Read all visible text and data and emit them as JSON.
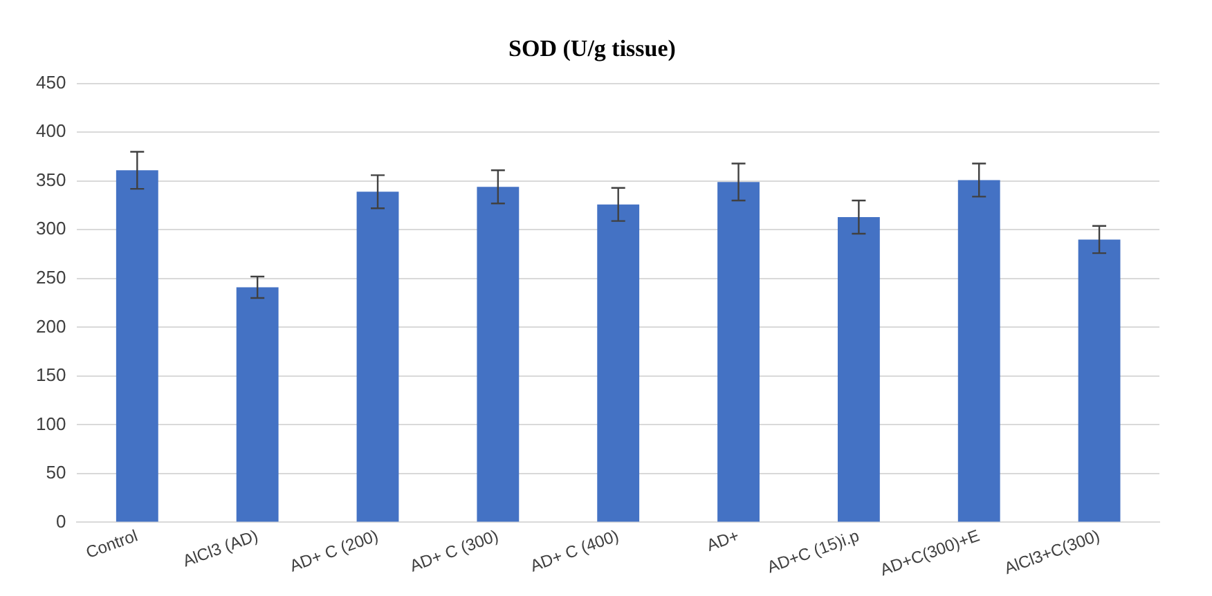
{
  "chart_data": {
    "type": "bar",
    "title": "SOD (U/g tissue)",
    "categories": [
      "Control",
      "AlCl3 (AD)",
      "AD+ C (200)",
      "AD+ C (300)",
      "AD+ C (400)",
      "AD+",
      "AD+C (15)i.p",
      "AD+C(300)+E",
      "AlCl3+C(300)"
    ],
    "values": [
      361,
      241,
      339,
      344,
      326,
      349,
      313,
      351,
      290
    ],
    "errors": [
      19,
      11,
      17,
      17,
      17,
      19,
      17,
      17,
      14
    ],
    "color": "#4472c4",
    "ylim": [
      0,
      450
    ],
    "yticks": [
      0,
      50,
      100,
      150,
      200,
      250,
      300,
      350,
      400,
      450
    ],
    "grid": "y",
    "legend": false
  }
}
